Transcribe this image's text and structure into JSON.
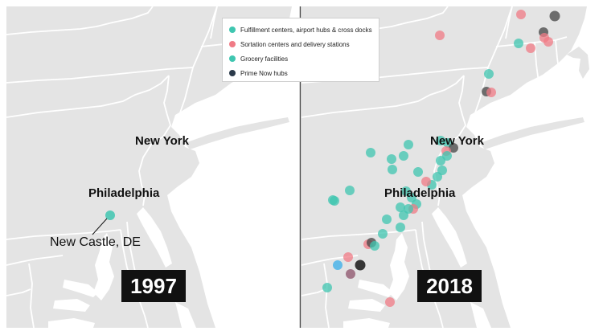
{
  "legend": {
    "items": [
      {
        "label": "Fulfillment centers, airport hubs & cross docks",
        "color": "#3fc6b0"
      },
      {
        "label": "Sortation centers and delivery stations",
        "color": "#f07b86"
      },
      {
        "label": "Grocery facilities",
        "color": "#3fc6b0"
      },
      {
        "label": "Prime Now hubs",
        "color": "#2b3a4a"
      }
    ]
  },
  "panels": [
    {
      "year": "1997",
      "cities": {
        "new_york": "New York",
        "philadelphia": "Philadelphia"
      },
      "callout": "New Castle, DE"
    },
    {
      "year": "2018",
      "cities": {
        "new_york": "New York",
        "philadelphia": "Philadelphia"
      }
    }
  ],
  "colors": {
    "land": "#e4e4e4",
    "water": "#ffffff",
    "border": "#ffffff",
    "teal": "#3fc6b0",
    "pink": "#f07b86",
    "dark": "#333333",
    "blue": "#5bb8e8",
    "mauve": "#9e7083"
  }
}
